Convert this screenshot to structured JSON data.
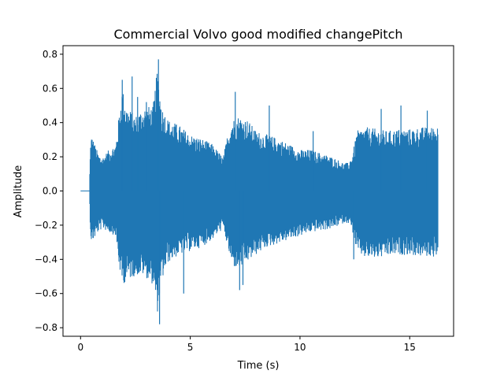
{
  "chart_data": {
    "type": "line",
    "title": "Commercial Volvo good modified changePitch",
    "xlabel": "Time (s)",
    "ylabel": "Amplitude",
    "xlim": [
      -0.8,
      17.0
    ],
    "ylim": [
      -0.85,
      0.85
    ],
    "xticks": [
      0,
      5,
      10,
      15
    ],
    "xtick_labels": [
      "0",
      "5",
      "10",
      "15"
    ],
    "yticks": [
      -0.8,
      -0.6,
      -0.4,
      -0.2,
      0.0,
      0.2,
      0.4,
      0.6,
      0.8
    ],
    "ytick_labels": [
      "−0.8",
      "−0.6",
      "−0.4",
      "−0.2",
      "0.0",
      "0.2",
      "0.4",
      "0.6",
      "0.8"
    ],
    "grid": false,
    "series": [
      {
        "color": "#1f77b4",
        "envelope": {
          "x": [
            0.0,
            0.4,
            0.45,
            0.5,
            0.8,
            1.0,
            1.3,
            1.6,
            1.75,
            1.9,
            2.1,
            2.5,
            2.9,
            3.3,
            3.5,
            3.7,
            4.0,
            4.5,
            5.0,
            5.5,
            6.0,
            6.5,
            6.7,
            6.9,
            7.2,
            7.6,
            8.0,
            8.5,
            9.0,
            9.5,
            10.0,
            10.5,
            11.0,
            11.5,
            12.0,
            12.2,
            12.4,
            12.6,
            13.0,
            13.5,
            14.0,
            14.5,
            15.0,
            15.5,
            16.0,
            16.3
          ],
          "upper": [
            0.0,
            0.0,
            0.25,
            0.3,
            0.2,
            0.18,
            0.22,
            0.25,
            0.4,
            0.55,
            0.45,
            0.4,
            0.45,
            0.45,
            0.65,
            0.45,
            0.38,
            0.35,
            0.3,
            0.28,
            0.25,
            0.18,
            0.3,
            0.38,
            0.4,
            0.38,
            0.32,
            0.3,
            0.28,
            0.25,
            0.22,
            0.22,
            0.2,
            0.18,
            0.15,
            0.15,
            0.2,
            0.32,
            0.34,
            0.33,
            0.32,
            0.33,
            0.33,
            0.34,
            0.34,
            0.35
          ],
          "lower": [
            0.0,
            0.0,
            -0.22,
            -0.28,
            -0.22,
            -0.2,
            -0.22,
            -0.24,
            -0.4,
            -0.5,
            -0.48,
            -0.45,
            -0.45,
            -0.5,
            -0.65,
            -0.48,
            -0.38,
            -0.34,
            -0.32,
            -0.3,
            -0.26,
            -0.2,
            -0.3,
            -0.4,
            -0.42,
            -0.38,
            -0.34,
            -0.3,
            -0.28,
            -0.26,
            -0.24,
            -0.22,
            -0.21,
            -0.2,
            -0.17,
            -0.17,
            -0.22,
            -0.33,
            -0.36,
            -0.36,
            -0.35,
            -0.34,
            -0.34,
            -0.35,
            -0.35,
            -0.35
          ]
        },
        "peaks": {
          "x": [
            0.5,
            1.9,
            2.35,
            2.6,
            3.0,
            3.55,
            3.6,
            4.7,
            7.05,
            7.25,
            7.4,
            8.6,
            10.6,
            12.45,
            13.7,
            14.6,
            15.8
          ],
          "y": [
            0.3,
            0.65,
            0.67,
            0.55,
            0.52,
            0.77,
            -0.78,
            -0.6,
            0.58,
            -0.58,
            -0.55,
            0.5,
            0.35,
            -0.4,
            0.48,
            0.5,
            0.47
          ]
        }
      }
    ]
  }
}
